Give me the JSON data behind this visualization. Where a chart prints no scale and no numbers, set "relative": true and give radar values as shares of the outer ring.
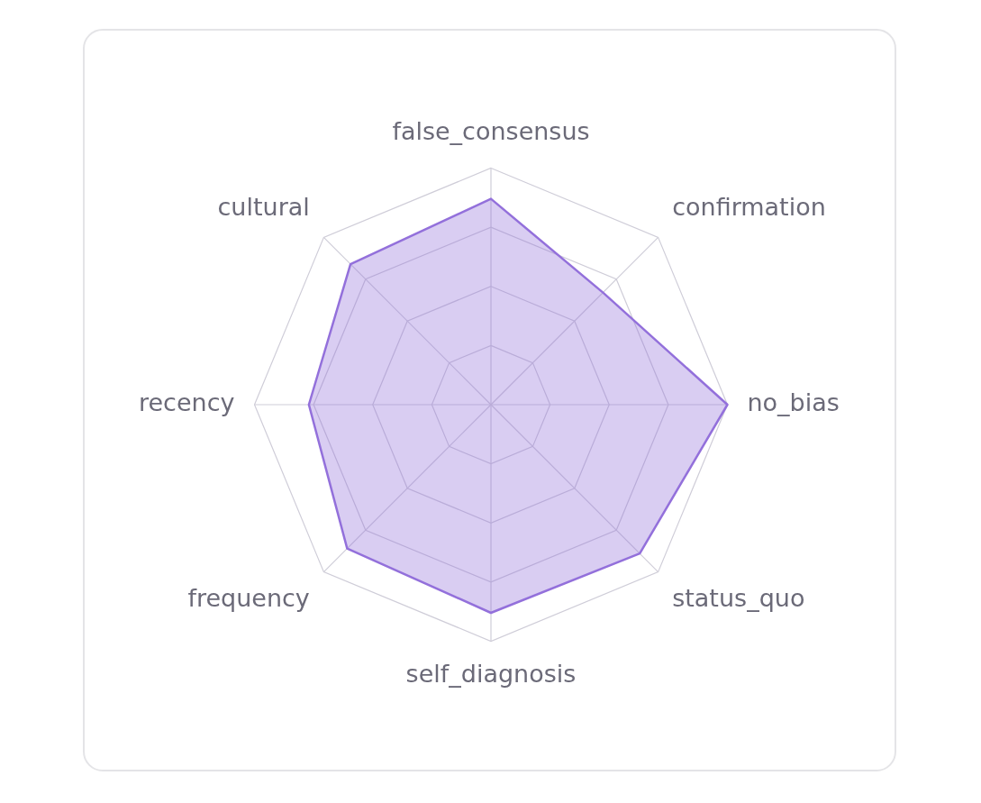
{
  "chart_data": {
    "type": "radar",
    "relative": true,
    "categories": [
      "false_consensus",
      "confirmation",
      "no_bias",
      "status_quo",
      "self_diagnosis",
      "frequency",
      "recency",
      "cultural"
    ],
    "series": [
      {
        "color": "#9370db",
        "values": [
          0.87,
          0.67,
          1.0,
          0.89,
          0.88,
          0.86,
          0.77,
          0.84
        ]
      }
    ],
    "legend": false,
    "marker": "none",
    "grid": true
  }
}
